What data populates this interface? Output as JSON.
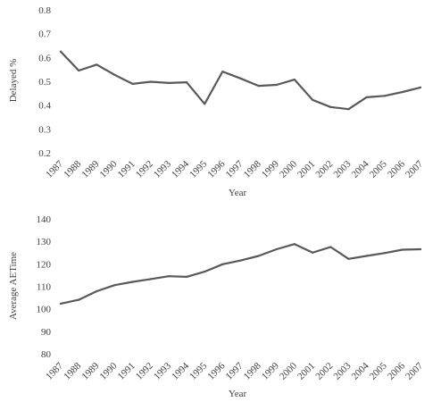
{
  "chart_data": [
    {
      "type": "line",
      "title": "",
      "xlabel": "Year",
      "ylabel": "Delayed %",
      "ylim": [
        0.2,
        0.8
      ],
      "yticks": [
        "0.2",
        "0.3",
        "0.4",
        "0.5",
        "0.6",
        "0.7",
        "0.8"
      ],
      "grid": false,
      "legend": "none",
      "line_color": "#595959",
      "x": [
        "1987",
        "1988",
        "1989",
        "1990",
        "1991",
        "1992",
        "1993",
        "1994",
        "1995",
        "1996",
        "1997",
        "1998",
        "1999",
        "2000",
        "2001",
        "2002",
        "2003",
        "2004",
        "2005",
        "2006",
        "2007"
      ],
      "values": [
        0.625,
        0.545,
        0.57,
        0.527,
        0.489,
        0.498,
        0.493,
        0.496,
        0.405,
        0.541,
        0.512,
        0.481,
        0.485,
        0.507,
        0.422,
        0.392,
        0.383,
        0.433,
        0.439,
        0.455,
        0.474
      ]
    },
    {
      "type": "line",
      "title": "",
      "xlabel": "Year",
      "ylabel": "Average AETime",
      "ylim": [
        80,
        140
      ],
      "yticks": [
        "80",
        "90",
        "100",
        "110",
        "120",
        "130",
        "140"
      ],
      "grid": false,
      "legend": "none",
      "line_color": "#595959",
      "x": [
        "1987",
        "1988",
        "1989",
        "1990",
        "1991",
        "1992",
        "1993",
        "1994",
        "1995",
        "1996",
        "1997",
        "1998",
        "1999",
        "2000",
        "2001",
        "2002",
        "2003",
        "2004",
        "2005",
        "2006",
        "2007"
      ],
      "values": [
        102.3,
        104.0,
        107.8,
        110.5,
        112.0,
        113.2,
        114.5,
        114.2,
        116.5,
        119.8,
        121.5,
        123.5,
        126.5,
        128.8,
        125.0,
        127.5,
        122.2,
        123.5,
        124.8,
        126.3,
        126.5
      ]
    }
  ]
}
